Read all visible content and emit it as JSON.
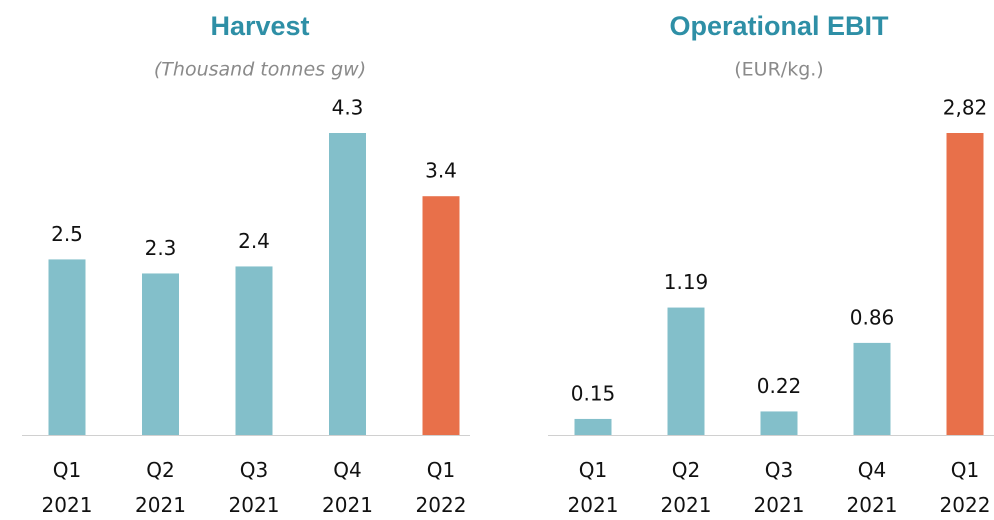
{
  "chart_data": [
    {
      "type": "bar",
      "title": "Harvest",
      "subtitle": "(Thousand tonnes gw)",
      "categories": [
        "Q1 2021",
        "Q2 2021",
        "Q3 2021",
        "Q4 2021",
        "Q1 2022"
      ],
      "values": [
        2.5,
        2.3,
        2.4,
        4.3,
        3.4
      ],
      "colors": [
        "#83bfca",
        "#83bfca",
        "#83bfca",
        "#83bfca",
        "#e8704a"
      ]
    },
    {
      "type": "bar",
      "title": "Operational EBIT",
      "subtitle": "(EUR/kg.)",
      "categories": [
        "Q1 2021",
        "Q2 2021",
        "Q3 2021",
        "Q4 2021",
        "Q1 2022"
      ],
      "values": [
        0.15,
        1.19,
        0.22,
        0.86,
        2.82
      ],
      "value_labels": [
        "0.15",
        "1.19",
        "0.22",
        "0.86",
        "2,82"
      ],
      "colors": [
        "#83bfca",
        "#83bfca",
        "#83bfca",
        "#83bfca",
        "#e8704a"
      ]
    }
  ]
}
